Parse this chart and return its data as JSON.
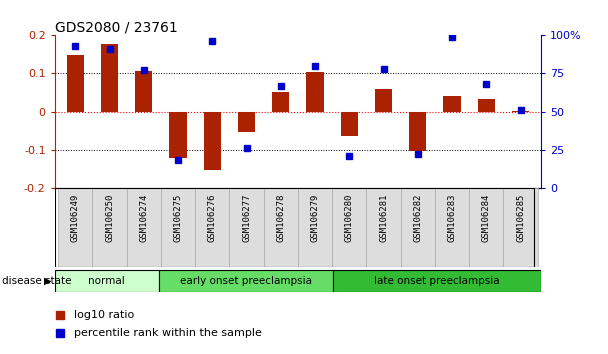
{
  "title": "GDS2080 / 23761",
  "samples": [
    "GSM106249",
    "GSM106250",
    "GSM106274",
    "GSM106275",
    "GSM106276",
    "GSM106277",
    "GSM106278",
    "GSM106279",
    "GSM106280",
    "GSM106281",
    "GSM106282",
    "GSM106283",
    "GSM106284",
    "GSM106285"
  ],
  "log10_ratio": [
    0.148,
    0.178,
    0.107,
    -0.123,
    -0.153,
    -0.055,
    0.052,
    0.104,
    -0.065,
    0.058,
    -0.105,
    0.042,
    0.032,
    0.002
  ],
  "percentile_rank": [
    93,
    91,
    77,
    18,
    96,
    26,
    67,
    80,
    21,
    78,
    22,
    99,
    68,
    51
  ],
  "bar_color": "#aa2200",
  "dot_color": "#0000cc",
  "groups": [
    {
      "label": "normal",
      "start": 0,
      "end": 2,
      "color": "#ccffcc"
    },
    {
      "label": "early onset preeclampsia",
      "start": 3,
      "end": 7,
      "color": "#66dd66"
    },
    {
      "label": "late onset preeclampsia",
      "start": 8,
      "end": 13,
      "color": "#33bb33"
    }
  ],
  "ylim_left": [
    -0.2,
    0.2
  ],
  "ylim_right": [
    0,
    100
  ],
  "yticks_left": [
    -0.2,
    -0.1,
    0.0,
    0.1,
    0.2
  ],
  "ytick_labels_left": [
    "-0.2",
    "-0.1",
    "0",
    "0.1",
    "0.2"
  ],
  "yticks_right": [
    0,
    25,
    50,
    75,
    100
  ],
  "ytick_labels_right": [
    "0",
    "25",
    "50",
    "75",
    "100%"
  ],
  "hlines": [
    -0.1,
    0.0,
    0.1
  ],
  "legend_items": [
    {
      "label": "log10 ratio",
      "color": "#aa2200"
    },
    {
      "label": "percentile rank within the sample",
      "color": "#0000cc"
    }
  ],
  "disease_state_label": "disease state",
  "background_color": "#ffffff",
  "title_fontsize": 10,
  "axis_fontsize": 8,
  "label_fontsize": 8
}
